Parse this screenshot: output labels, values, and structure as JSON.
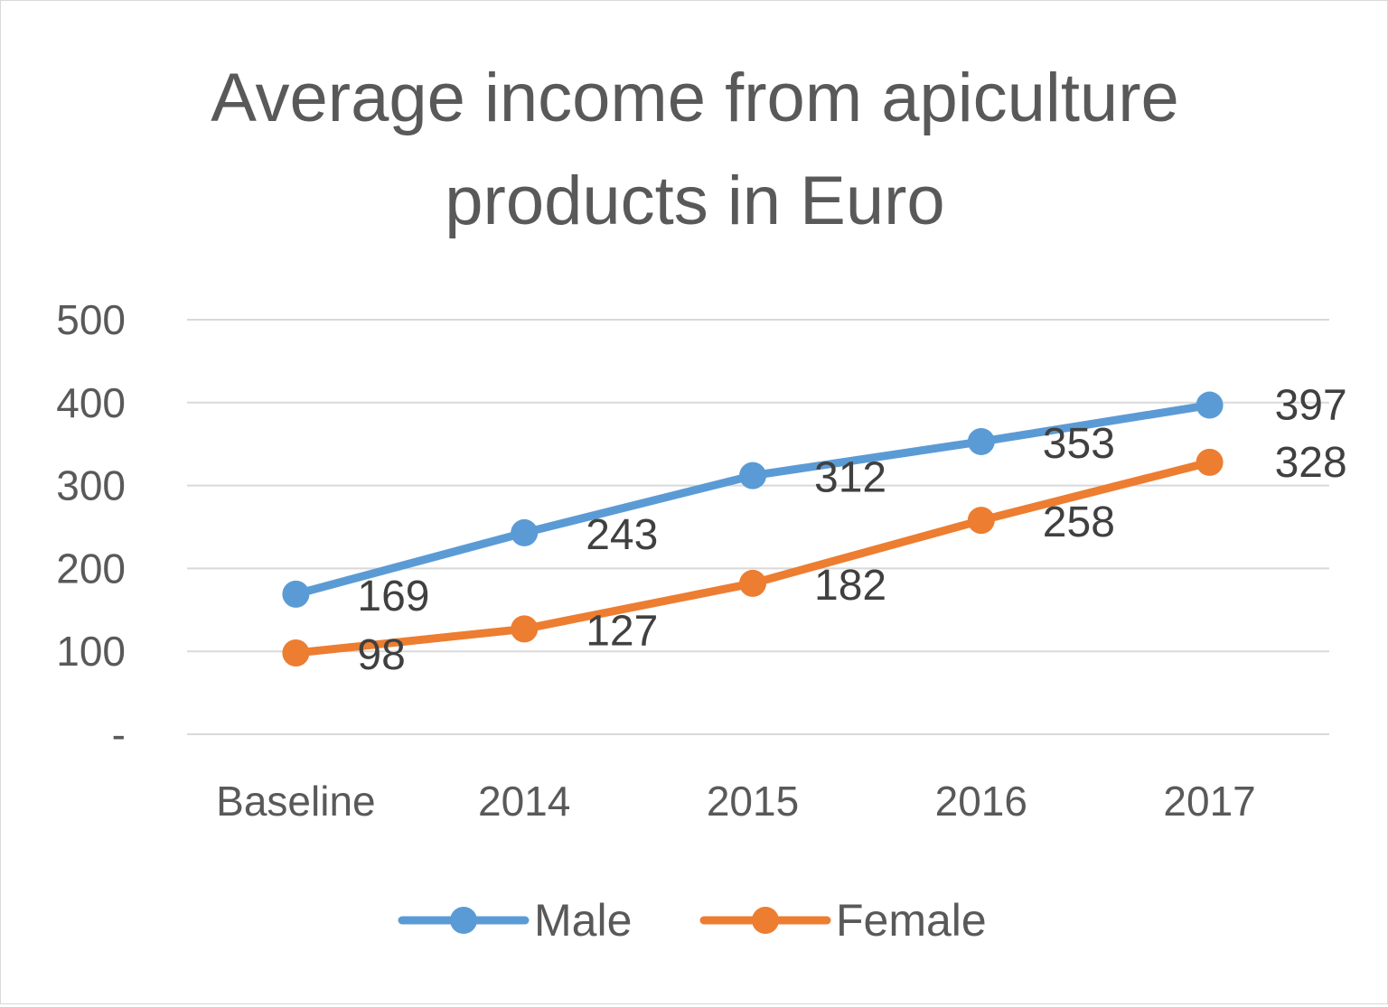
{
  "chart_data": {
    "type": "line",
    "title": "Average income from apiculture products in Euro",
    "title_lines": [
      "Average income from apiculture",
      "products in Euro"
    ],
    "categories": [
      "Baseline",
      "2014",
      "2015",
      "2016",
      "2017"
    ],
    "series": [
      {
        "name": "Male",
        "values": [
          169,
          243,
          312,
          353,
          397
        ],
        "color": "#5b9bd5"
      },
      {
        "name": "Female",
        "values": [
          98,
          127,
          182,
          258,
          328
        ],
        "color": "#ed7d31"
      }
    ],
    "y_ticks": [
      0,
      100,
      200,
      300,
      400,
      500
    ],
    "y_tick_labels": [
      "-",
      "100",
      "200",
      "300",
      "400",
      "500"
    ],
    "ylim": [
      0,
      500
    ],
    "grid": true,
    "legend_position": "bottom",
    "data_labels": true
  }
}
